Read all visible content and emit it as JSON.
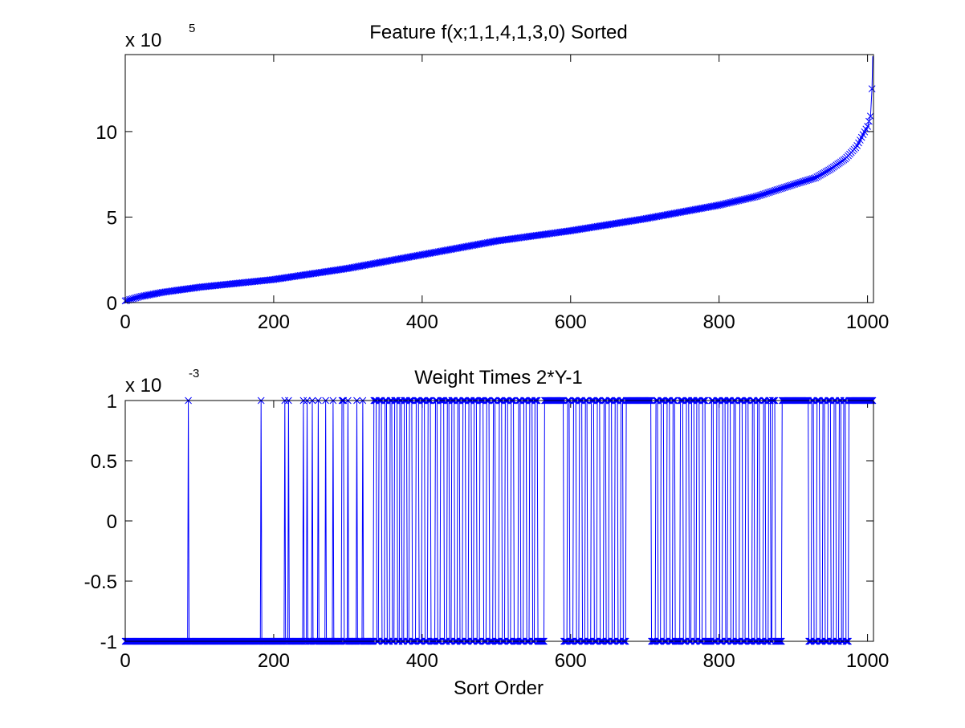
{
  "chart_data": [
    {
      "type": "line",
      "title": "Feature f(x;1,1,4,1,3,0) Sorted",
      "xlabel": "",
      "ylabel": "",
      "marker": "x",
      "color": "#0000ff",
      "xlim": [
        0,
        1008
      ],
      "ylim": [
        0,
        14.5
      ],
      "y_multiplier": {
        "base": "x 10",
        "exponent": "5"
      },
      "xticks": [
        0,
        200,
        400,
        600,
        800,
        1000
      ],
      "xtick_labels": [
        "0",
        "200",
        "400",
        "600",
        "800",
        "1000"
      ],
      "yticks": [
        0,
        5,
        10
      ],
      "ytick_labels": [
        "0",
        "5",
        "10"
      ],
      "grid": false,
      "n_points": 1008,
      "curve_anchors": [
        [
          0,
          0.1
        ],
        [
          20,
          0.35
        ],
        [
          50,
          0.6
        ],
        [
          100,
          0.9
        ],
        [
          200,
          1.35
        ],
        [
          300,
          2.0
        ],
        [
          400,
          2.8
        ],
        [
          500,
          3.6
        ],
        [
          600,
          4.2
        ],
        [
          700,
          4.9
        ],
        [
          800,
          5.7
        ],
        [
          850,
          6.2
        ],
        [
          900,
          6.9
        ],
        [
          930,
          7.3
        ],
        [
          950,
          7.8
        ],
        [
          970,
          8.4
        ],
        [
          985,
          9.1
        ],
        [
          995,
          9.9
        ],
        [
          1000,
          10.3
        ],
        [
          1004,
          10.9
        ],
        [
          1006,
          12.5
        ],
        [
          1007,
          14.4
        ]
      ]
    },
    {
      "type": "line",
      "title": "Weight Times 2*Y-1",
      "xlabel": "Sort Order",
      "ylabel": "",
      "marker": "x",
      "color": "#0000ff",
      "xlim": [
        0,
        1008
      ],
      "ylim": [
        -1,
        1
      ],
      "y_multiplier": {
        "base": "x 10",
        "exponent": "-3"
      },
      "xticks": [
        0,
        200,
        400,
        600,
        800,
        1000
      ],
      "xtick_labels": [
        "0",
        "200",
        "400",
        "600",
        "800",
        "1000"
      ],
      "yticks": [
        -1,
        -0.5,
        0,
        0.5,
        1
      ],
      "ytick_labels": [
        "-1",
        "-0.5",
        "0",
        "0.5",
        "1"
      ],
      "grid": false,
      "n_points": 1008,
      "positive_runs": [
        [
          85,
          85
        ],
        [
          183,
          183
        ],
        [
          215,
          215
        ],
        [
          220,
          220
        ],
        [
          240,
          240
        ],
        [
          245,
          245
        ],
        [
          252,
          252
        ],
        [
          260,
          260
        ],
        [
          270,
          270
        ],
        [
          280,
          280
        ],
        [
          292,
          294
        ],
        [
          300,
          300
        ],
        [
          312,
          312
        ],
        [
          320,
          320
        ],
        [
          335,
          338
        ],
        [
          342,
          345
        ],
        [
          350,
          352
        ],
        [
          357,
          359
        ],
        [
          363,
          366
        ],
        [
          370,
          372
        ],
        [
          376,
          379
        ],
        [
          383,
          386
        ],
        [
          392,
          395
        ],
        [
          400,
          403
        ],
        [
          408,
          411
        ],
        [
          418,
          420
        ],
        [
          425,
          429
        ],
        [
          434,
          436
        ],
        [
          440,
          443
        ],
        [
          448,
          450
        ],
        [
          455,
          458
        ],
        [
          463,
          466
        ],
        [
          470,
          473
        ],
        [
          478,
          482
        ],
        [
          487,
          490
        ],
        [
          496,
          498
        ],
        [
          504,
          507
        ],
        [
          512,
          515
        ],
        [
          520,
          523
        ],
        [
          530,
          532
        ],
        [
          537,
          540
        ],
        [
          545,
          548
        ],
        [
          552,
          555
        ],
        [
          565,
          590
        ],
        [
          596,
          598
        ],
        [
          604,
          607
        ],
        [
          612,
          615
        ],
        [
          620,
          622
        ],
        [
          628,
          631
        ],
        [
          636,
          639
        ],
        [
          645,
          647
        ],
        [
          652,
          655
        ],
        [
          660,
          663
        ],
        [
          668,
          670
        ],
        [
          675,
          708
        ],
        [
          715,
          717
        ],
        [
          722,
          725
        ],
        [
          730,
          733
        ],
        [
          738,
          740
        ],
        [
          748,
          751
        ],
        [
          756,
          759
        ],
        [
          763,
          766
        ],
        [
          770,
          773
        ],
        [
          778,
          781
        ],
        [
          790,
          792
        ],
        [
          797,
          800
        ],
        [
          805,
          808
        ],
        [
          812,
          815
        ],
        [
          820,
          822
        ],
        [
          828,
          831
        ],
        [
          836,
          839
        ],
        [
          845,
          847
        ],
        [
          852,
          854
        ],
        [
          860,
          862
        ],
        [
          867,
          869
        ],
        [
          872,
          875
        ],
        [
          885,
          920
        ],
        [
          925,
          927
        ],
        [
          932,
          935
        ],
        [
          940,
          942
        ],
        [
          947,
          950
        ],
        [
          955,
          957
        ],
        [
          962,
          964
        ],
        [
          968,
          970
        ],
        [
          975,
          1008
        ]
      ]
    }
  ]
}
